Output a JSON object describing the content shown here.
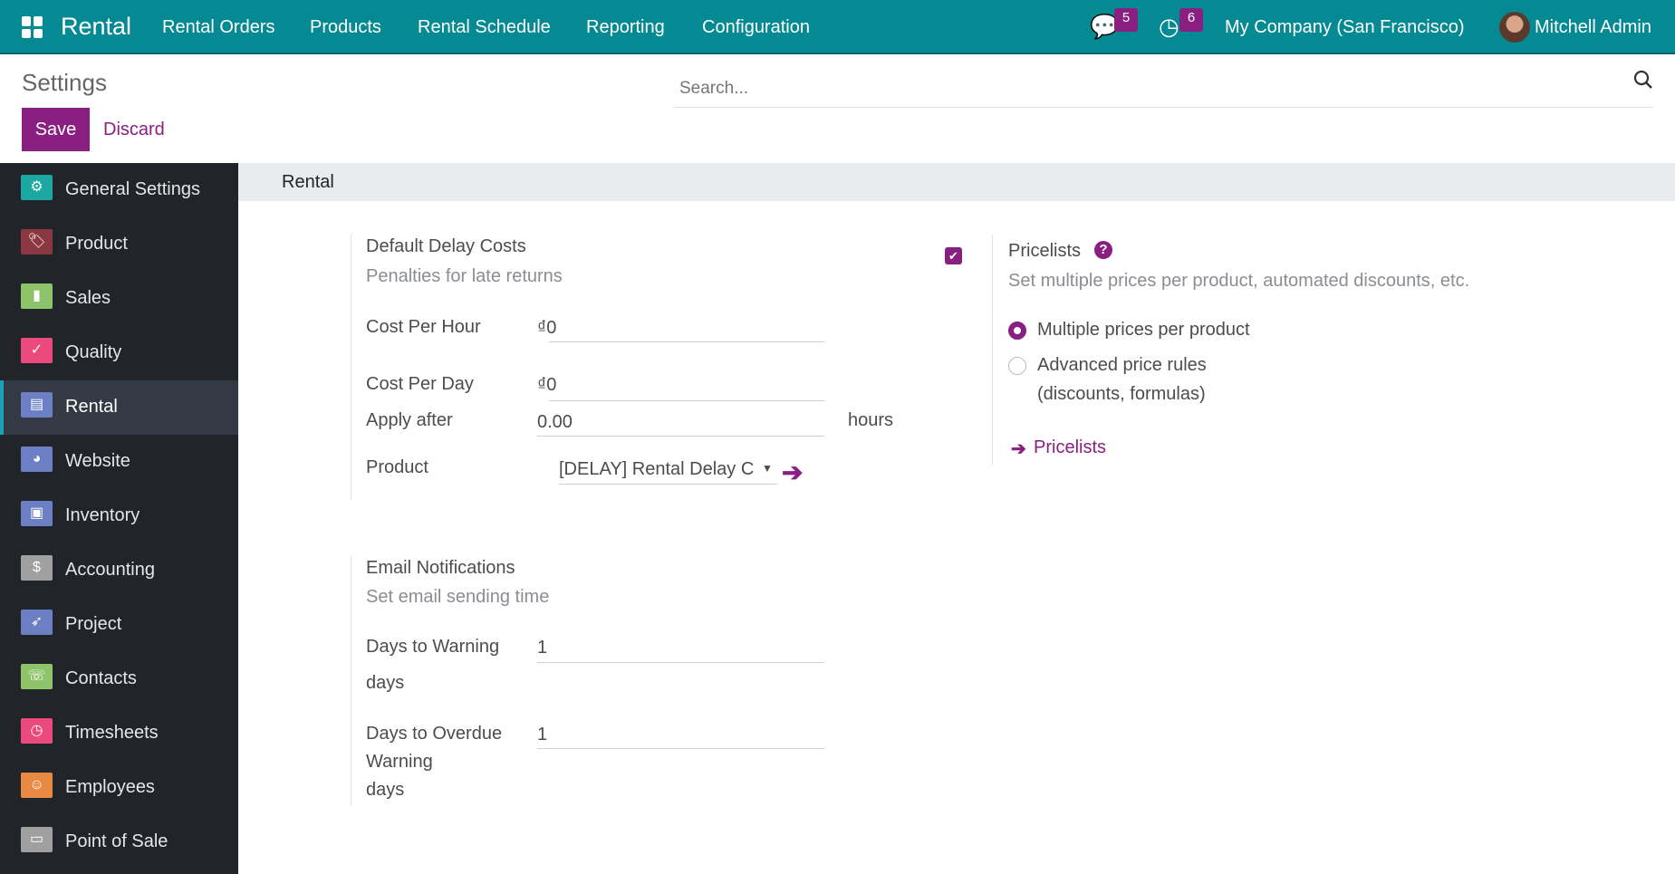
{
  "navbar": {
    "app_name": "Rental",
    "menu": [
      "Rental Orders",
      "Products",
      "Rental Schedule",
      "Reporting",
      "Configuration"
    ],
    "messages_count": "5",
    "activities_count": "6",
    "company": "My Company (San Francisco)",
    "user": "Mitchell Admin",
    "color": "#058a93"
  },
  "control_panel": {
    "title": "Settings",
    "save_label": "Save",
    "discard_label": "Discard",
    "search_placeholder": "Search..."
  },
  "sidebar": {
    "active": "Rental",
    "items": [
      {
        "label": "General Settings",
        "icon": "gear-icon",
        "color": "#1ba8a2",
        "glyph": "⚙"
      },
      {
        "label": "Product",
        "icon": "tag-icon",
        "color": "#8c3843",
        "glyph": "🏷"
      },
      {
        "label": "Sales",
        "icon": "chart-icon",
        "color": "#8dc46a",
        "glyph": "▮"
      },
      {
        "label": "Quality",
        "icon": "badge-check-icon",
        "color": "#ea4a7c",
        "glyph": "✓"
      },
      {
        "label": "Rental",
        "icon": "rental-icon",
        "color": "#6c7fc4",
        "glyph": "▤"
      },
      {
        "label": "Website",
        "icon": "globe-icon",
        "color": "#6c7fc4",
        "glyph": "◕"
      },
      {
        "label": "Inventory",
        "icon": "box-icon",
        "color": "#6c7fc4",
        "glyph": "▣"
      },
      {
        "label": "Accounting",
        "icon": "invoice-icon",
        "color": "#a0a0a0",
        "glyph": "$"
      },
      {
        "label": "Project",
        "icon": "rocket-icon",
        "color": "#6c7fc4",
        "glyph": "➶"
      },
      {
        "label": "Contacts",
        "icon": "phone-book-icon",
        "color": "#8dc46a",
        "glyph": "☏"
      },
      {
        "label": "Timesheets",
        "icon": "timer-icon",
        "color": "#ea4a7c",
        "glyph": "◷"
      },
      {
        "label": "Employees",
        "icon": "people-icon",
        "color": "#e98a44",
        "glyph": "☺"
      },
      {
        "label": "Point of Sale",
        "icon": "register-icon",
        "color": "#a0a0a0",
        "glyph": "▭"
      }
    ]
  },
  "section": {
    "title": "Rental",
    "delay": {
      "title": "Default Delay Costs",
      "subtitle": "Penalties for late returns",
      "enabled": true,
      "cost_per_hour_label": "Cost Per Hour",
      "cost_per_hour": "₫0",
      "cost_per_day_label": "Cost Per Day",
      "cost_per_day": "₫0",
      "apply_after_label": "Apply after",
      "apply_after": "0.00",
      "apply_after_unit": "hours",
      "product_label": "Product",
      "product": "[DELAY] Rental Delay C"
    },
    "email": {
      "title": "Email Notifications",
      "subtitle": "Set email sending time",
      "warning_label": "Days to Warning",
      "warning_value": "1",
      "warning_unit": "days",
      "overdue_label_1": "Days to Overdue",
      "overdue_label_2": "Warning",
      "overdue_value": "1",
      "overdue_unit": "days"
    },
    "pricelists": {
      "title": "Pricelists",
      "subtitle": "Set multiple prices per product, automated discounts, etc.",
      "options": [
        "Multiple prices per product",
        "Advanced price rules",
        "(discounts, formulas)"
      ],
      "selected": "Multiple prices per product",
      "link": "Pricelists"
    }
  },
  "accent": "#8a1f82"
}
